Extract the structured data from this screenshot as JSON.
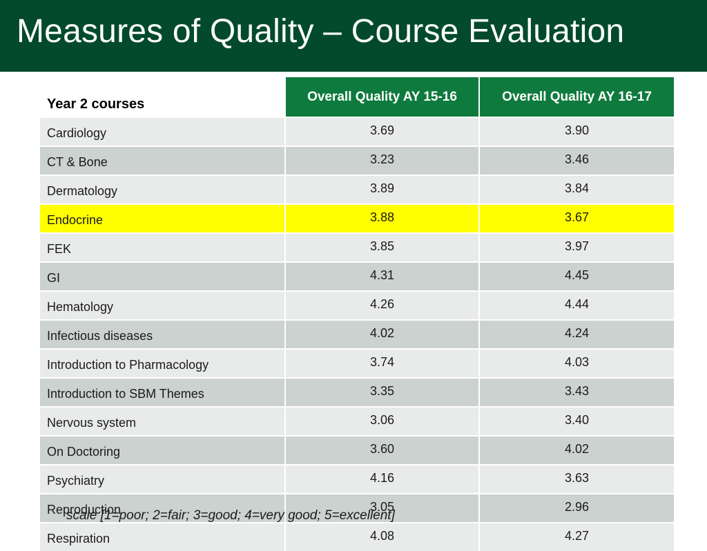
{
  "title": "Measures of Quality – Course Evaluation",
  "table": {
    "headers": [
      "Year 2 courses",
      "Overall Quality AY 15-16",
      "Overall Quality AY 16-17"
    ],
    "highlight_color": "#ffff00",
    "rows": [
      {
        "course": "Cardiology",
        "ay1516": "3.69",
        "ay1617": "3.90"
      },
      {
        "course": "CT & Bone",
        "ay1516": "3.23",
        "ay1617": "3.46"
      },
      {
        "course": "Dermatology",
        "ay1516": "3.89",
        "ay1617": "3.84"
      },
      {
        "course": "Endocrine",
        "ay1516": "3.88",
        "ay1617": "3.67",
        "highlighted": true
      },
      {
        "course": "FEK",
        "ay1516": "3.85",
        "ay1617": "3.97"
      },
      {
        "course": "GI",
        "ay1516": "4.31",
        "ay1617": "4.45"
      },
      {
        "course": "Hematology",
        "ay1516": "4.26",
        "ay1617": "4.44"
      },
      {
        "course": "Infectious diseases",
        "ay1516": "4.02",
        "ay1617": "4.24"
      },
      {
        "course": "Introduction to Pharmacology",
        "ay1516": "3.74",
        "ay1617": "4.03"
      },
      {
        "course": "Introduction to SBM Themes",
        "ay1516": "3.35",
        "ay1617": "3.43"
      },
      {
        "course": "Nervous system",
        "ay1516": "3.06",
        "ay1617": "3.40"
      },
      {
        "course": "On Doctoring",
        "ay1516": "3.60",
        "ay1617": "4.02"
      },
      {
        "course": "Psychiatry",
        "ay1516": "4.16",
        "ay1617": "3.63"
      },
      {
        "course": "Reproduction",
        "ay1516": "3.05",
        "ay1617": "2.96"
      },
      {
        "course": "Respiration",
        "ay1516": "4.08",
        "ay1617": "4.27"
      }
    ]
  },
  "scale_note": "scale [1=poor; 2=fair; 3=good; 4=very good; 5=excellent]",
  "colors": {
    "title_bar": "#034a2c",
    "header_fill": "#0f7a3e",
    "row_light": "#e9ebea",
    "row_dark": "#ccd2cf"
  }
}
